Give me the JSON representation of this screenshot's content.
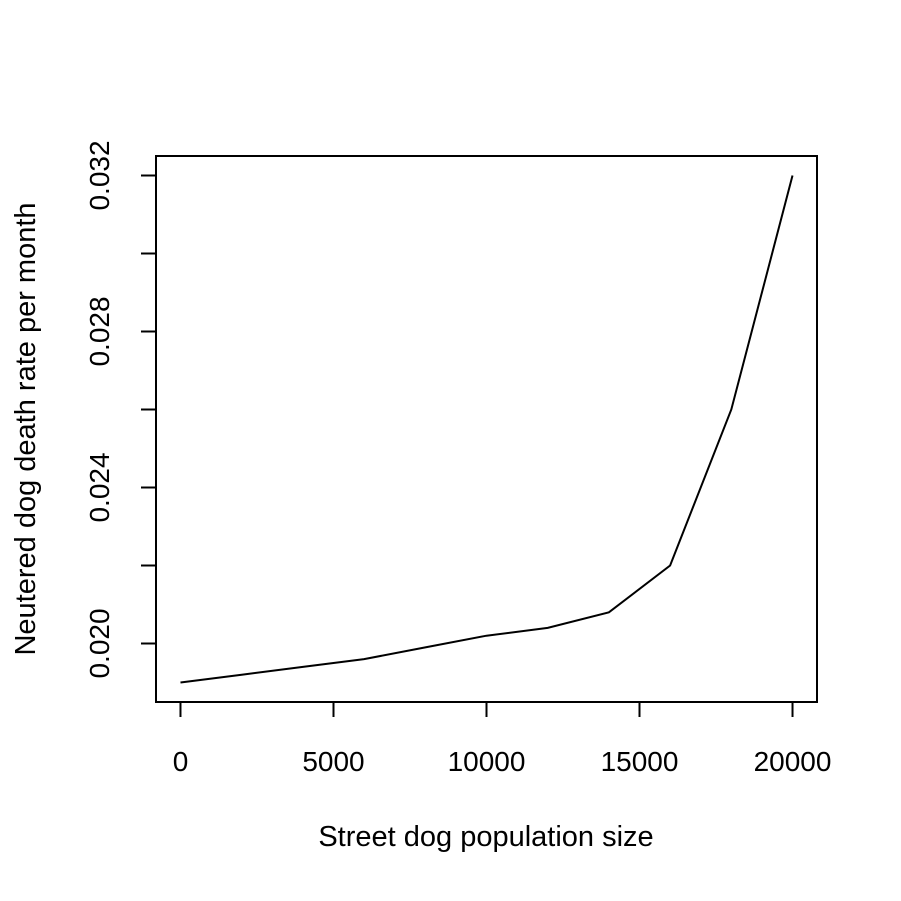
{
  "chart_data": {
    "type": "line",
    "title": "",
    "xlabel": "Street dog population size",
    "ylabel": "Neutered dog death rate per month",
    "x": [
      0,
      2000,
      4000,
      6000,
      8000,
      10000,
      12000,
      14000,
      16000,
      18000,
      20000
    ],
    "series": [
      {
        "values": [
          0.019,
          0.0192,
          0.0194,
          0.0196,
          0.0199,
          0.0202,
          0.0204,
          0.0208,
          0.022,
          0.026,
          0.032
        ]
      }
    ],
    "xlim": [
      -800,
      20800
    ],
    "ylim": [
      0.0185,
      0.0325
    ],
    "x_ticks": [
      0,
      5000,
      10000,
      15000,
      20000
    ],
    "x_tick_labels": [
      "0",
      "5000",
      "10000",
      "15000",
      "20000"
    ],
    "y_ticks": [
      0.02,
      0.022,
      0.024,
      0.026,
      0.028,
      0.03,
      0.032
    ],
    "y_tick_labels": [
      "0.020",
      "",
      "0.024",
      "",
      "0.028",
      "",
      "0.032"
    ],
    "grid": false,
    "line_color": "#000000"
  }
}
